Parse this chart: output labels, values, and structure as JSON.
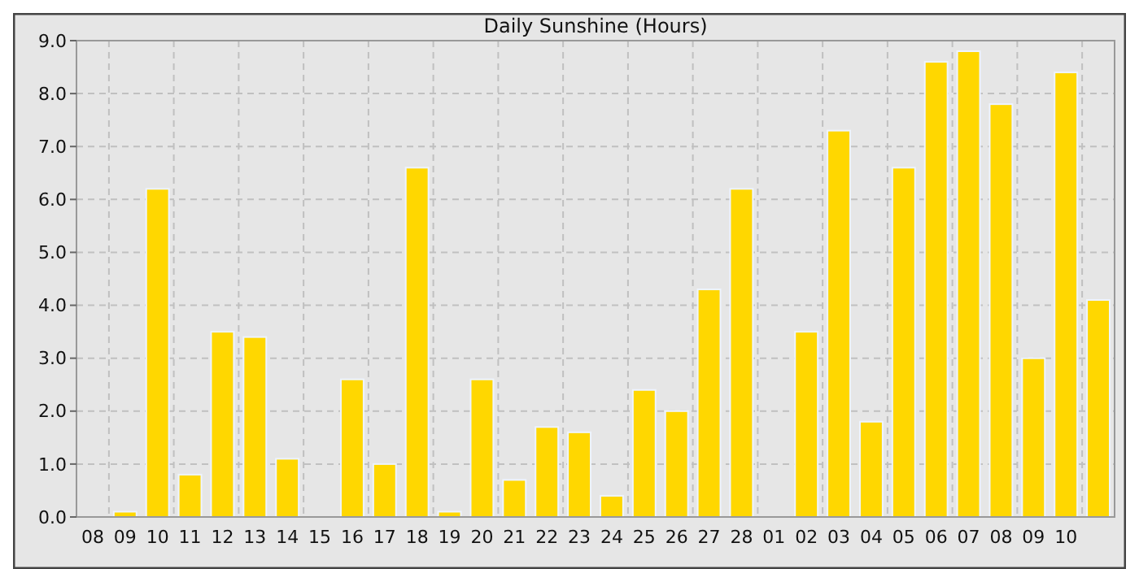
{
  "chart_data": {
    "type": "bar",
    "title": "Daily Sunshine (Hours)",
    "categories": [
      "08",
      "09",
      "10",
      "11",
      "12",
      "13",
      "14",
      "15",
      "16",
      "17",
      "18",
      "19",
      "20",
      "21",
      "22",
      "23",
      "24",
      "25",
      "26",
      "27",
      "28",
      "01",
      "02",
      "03",
      "04",
      "05",
      "06",
      "07",
      "08",
      "09",
      "10",
      null
    ],
    "values": [
      0,
      0.1,
      6.2,
      0.8,
      3.5,
      3.4,
      1.1,
      0,
      2.6,
      1.0,
      6.6,
      0.1,
      2.6,
      0.7,
      1.7,
      1.6,
      0.4,
      2.4,
      2.0,
      4.3,
      6.2,
      0,
      3.5,
      7.3,
      1.8,
      6.6,
      8.6,
      8.8,
      7.8,
      3.0,
      8.4,
      4.1
    ],
    "color": "#ffd700",
    "ylim": [
      0,
      9
    ],
    "yticks": [
      {
        "value": 0,
        "label": "0.0"
      },
      {
        "value": 1,
        "label": "1.0"
      },
      {
        "value": 2,
        "label": "2.0"
      },
      {
        "value": 3,
        "label": "3.0"
      },
      {
        "value": 4,
        "label": "4.0"
      },
      {
        "value": 5,
        "label": "5.0"
      },
      {
        "value": 6,
        "label": "6.0"
      },
      {
        "value": 7,
        "label": "7.0"
      },
      {
        "value": 8,
        "label": "8.0"
      },
      {
        "value": 9,
        "label": "9.0"
      }
    ],
    "grid": true
  }
}
